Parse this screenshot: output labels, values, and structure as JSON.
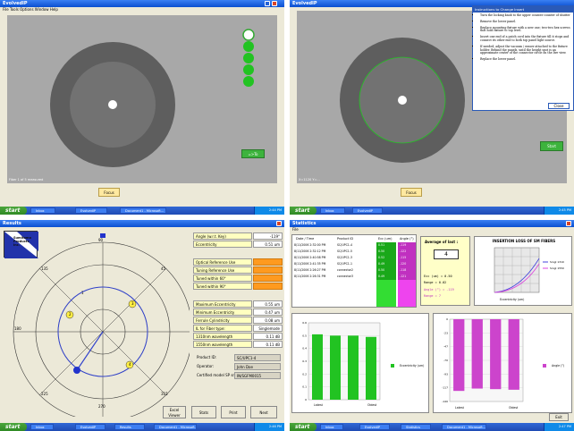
{
  "q1": {
    "title": "EvolvedIP",
    "menu": "File   Tools   Options   Window   Help",
    "status": "Fiber 1 of 5 measured",
    "go_label": "=>To",
    "focus_label": "Focus",
    "task_items": [
      "Inbox",
      "EvolvedIP",
      "Document1 - Microsoft..."
    ],
    "clock": "2:44 PM"
  },
  "q2": {
    "title": "EvolvedIP",
    "status": "X=1120 Y=... ",
    "instr_title": "Instructions to Change Insert",
    "instructions": [
      "Turn the locking knob to the upper counter counter of shutter",
      "Remove the lower panel.",
      "Replace mounting fixture with a new one; two-two hex screws that hold fixture to top level.",
      "Insert one end of a patch cord into the fixture till it stops and connect its other end to both top panel light source.",
      "If needed, adjust the vacuum / eraser attached to the fixture holder. Behind the panels, until the height spot is an approximate center of the connector circle on the live view.",
      "Replace the lower panel."
    ],
    "close_label": "Close",
    "start_label": "Start",
    "focus_label": "Focus",
    "task_items": [
      "Inbox",
      "EvolvedIP"
    ],
    "clock": "2:45 PM"
  },
  "q3": {
    "title": "Results",
    "logo_text": "Sumitomo Products Inc.",
    "angles": {
      "a90": "90",
      "a45": "45",
      "a0": "0",
      "a315": "315",
      "a270": "270",
      "a225": "225",
      "a180": "180",
      "a135": "135"
    },
    "points": [
      "1",
      "2",
      "3",
      "4"
    ],
    "rows": [
      {
        "label": "Angle (w.r.t. Key)",
        "value": "-119°"
      },
      {
        "label": "Eccentricity",
        "value": "0.51 um"
      }
    ],
    "ref_rows": [
      "Optical Reference Use",
      "Tuning Reference Use",
      "Tuned within 60°",
      "Tuned within 90°"
    ],
    "metrics": [
      {
        "label": "Maximum Eccentricity",
        "value": "0.55 um"
      },
      {
        "label": "Minimum Eccentricity",
        "value": "0.47 um"
      },
      {
        "label": "Ferrule Cylindricity",
        "value": "0.08 um"
      },
      {
        "label": "IL for Fiber type:",
        "value": "Singlemode"
      },
      {
        "label": "1310nm wavelength",
        "value": "0.11 dB"
      },
      {
        "label": "1550nm wavelength",
        "value": "0.11 dB"
      }
    ],
    "product_label": "Product ID:",
    "product_value": "SC/UPC1-4",
    "operator_label": "Operator:",
    "operator_value": "John Doe",
    "model_label": "Certified model SP sn:",
    "model_value": "IN/SGFM0015",
    "buttons": [
      "Excel Viewer",
      "Stats",
      "Print",
      "Next"
    ],
    "task_items": [
      "Inbox",
      "EvolvedIP",
      "Results",
      "Document1 - Microsoft..."
    ],
    "clock": "2:46 PM"
  },
  "q4": {
    "title": "Statistics",
    "menu": "File",
    "cols": [
      "Date / Time",
      "Product ID",
      "Ecc (um)",
      "Angle (°)"
    ],
    "rows": [
      [
        "8/11/2006 2:32:00 PM",
        "SC/UPC1-4",
        "0.51",
        "-119"
      ],
      [
        "8/11/2006 2:32:12 PM",
        "SC/UPC1-5",
        "0.50",
        "-122"
      ],
      [
        "8/11/2006 2:40:58 PM",
        "SC/UPC1-3",
        "0.52",
        "-115"
      ],
      [
        "8/11/2006 2:41:35 PM",
        "SC/UPC1-1",
        "0.49",
        "-120"
      ],
      [
        "8/11/2006 2:26:27 PM",
        "connector2",
        "0.50",
        "-118"
      ],
      [
        "8/11/2006 2:26:31 PM",
        "connector3",
        "0.49",
        "-121"
      ]
    ],
    "avg_title": "Average of last :",
    "avg_value": "4",
    "stats_text": [
      "Ecc (um) = 0.50",
      "Range = 0.02",
      "Angle (°) = -119",
      "Range = 7"
    ],
    "plot_title": "INSERTION LOSS OF SM FIBERS",
    "plot_legend": [
      "Singl 1310",
      "Singl 1550"
    ],
    "plot_xlabel": "Eccentricity (um)",
    "bar_legend1": "Eccentricity (um)",
    "bar_legend2": "Angle (°)",
    "bar_cats1": [
      "Latest",
      "",
      "",
      "Oldest"
    ],
    "bar_cats2": [
      "Latest",
      "",
      "",
      "Oldest"
    ],
    "exit_label": "Exit",
    "task_items": [
      "Inbox",
      "EvolvedIP",
      "Statistics",
      "Document1 - Microsoft..."
    ],
    "clock": "2:47 PM"
  },
  "chart_data": [
    {
      "type": "bar",
      "categories": [
        "1",
        "2",
        "3",
        "4"
      ],
      "series": [
        {
          "name": "Eccentricity (um)",
          "values": [
            0.51,
            0.5,
            0.5,
            0.49
          ]
        }
      ],
      "ylim": [
        0,
        0.6
      ],
      "color": "#22c322"
    },
    {
      "type": "bar",
      "categories": [
        "1",
        "2",
        "3",
        "4"
      ],
      "series": [
        {
          "name": "Angle (°)",
          "values": [
            -122,
            -118,
            -119,
            -120
          ]
        }
      ],
      "ylim": [
        -140,
        0
      ],
      "color": "#cc44cc"
    }
  ]
}
